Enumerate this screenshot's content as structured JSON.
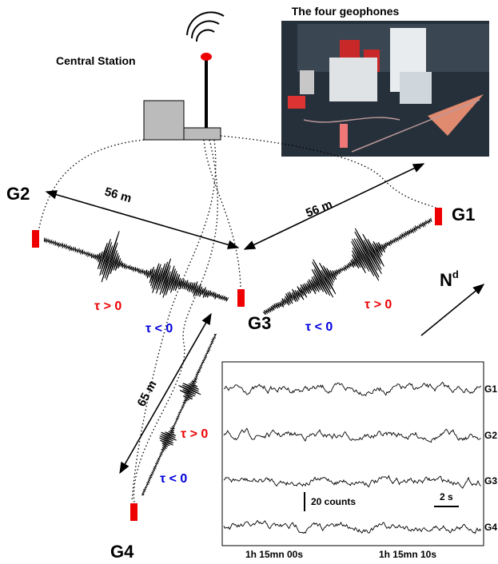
{
  "title": "The four geophones",
  "station": "Central Station",
  "geophones": [
    "G1",
    "G2",
    "G3",
    "G4"
  ],
  "distances": [
    "56 m",
    "56 m",
    "65 m"
  ],
  "delays": [
    "τ > 0",
    "τ < 0",
    "τ < 0",
    "τ > 0",
    "τ > 0",
    "τ < 0"
  ],
  "north": {
    "label": "N",
    "sup": "d"
  },
  "inset": {
    "traces": [
      "G1",
      "G2",
      "G3",
      "G4"
    ],
    "scale_y": "20 counts",
    "scale_x": "2 s",
    "times": [
      "1h 15mn 00s",
      "1h 15mn 10s"
    ]
  }
}
